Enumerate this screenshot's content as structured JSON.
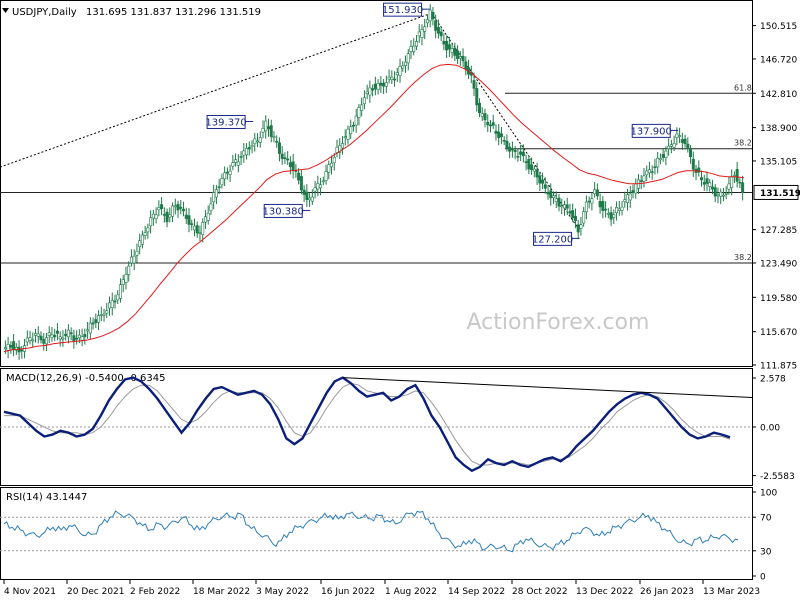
{
  "header": {
    "symbol": "USDJPY,Daily",
    "ohlc": "131.695 131.837 131.296 131.519",
    "macd_label": "MACD(12,26,9) -0.5400 -0.6345",
    "rsi_label": "RSI(14) 43.1447"
  },
  "watermark": "ActionForex.com",
  "colors": {
    "candles": "#1f7a4a",
    "ma": "#e11b1b",
    "macd": "#0b1f7a",
    "signal": "#9a9a9a",
    "rsi": "#2f7fb8",
    "frame": "#000000"
  },
  "chart_data": [
    {
      "type": "line",
      "panel": "price",
      "ylim": [
        111.875,
        153.2
      ],
      "y_ticks": [
        "150.515",
        "146.720",
        "142.810",
        "138.900",
        "135.105",
        "131.519",
        "127.285",
        "123.490",
        "119.580",
        "115.670",
        "111.875"
      ],
      "x_ticks": [
        "4 Nov 2021",
        "20 Dec 2021",
        "2 Feb 2022",
        "18 Mar 2022",
        "3 May 2022",
        "16 Jun 2022",
        "1 Aug 2022",
        "14 Sep 2022",
        "28 Oct 2022",
        "13 Dec 2022",
        "26 Jan 2023",
        "13 Mar 2023"
      ],
      "series": [
        {
          "values": [
            113.5,
            114.2,
            113.3,
            114.6,
            115.3,
            114.6,
            115.6,
            115.0,
            115.5,
            114.7,
            115.4,
            116.8,
            117.5,
            118.6,
            119.8,
            122.5,
            124.5,
            126.5,
            128.3,
            129.8,
            128.5,
            130.2,
            129.2,
            127.6,
            127.0,
            129.5,
            132.0,
            133.5,
            134.6,
            135.6,
            136.8,
            137.5,
            139.37,
            137.6,
            135.5,
            134.8,
            133.0,
            130.38,
            131.8,
            133.0,
            135.2,
            136.9,
            138.4,
            140.0,
            142.5,
            143.5,
            143.7,
            144.3,
            145.0,
            146.6,
            148.5,
            150.0,
            151.93,
            149.5,
            148.0,
            147.4,
            146.4,
            144.5,
            140.5,
            139.5,
            138.5,
            137.2,
            136.0,
            135.8,
            134.5,
            133.5,
            131.8,
            130.8,
            130.0,
            129.5,
            127.2,
            130.2,
            131.5,
            129.5,
            128.8,
            129.8,
            131.0,
            132.2,
            133.5,
            134.2,
            135.5,
            136.5,
            137.9,
            137.2,
            134.5,
            133.0,
            132.3,
            131.0,
            131.6,
            133.8,
            131.519
          ]
        },
        {
          "name": "",
          "values": [
            113.4,
            113.6,
            113.7,
            113.8,
            114.0,
            114.1,
            114.3,
            114.4,
            114.5,
            114.6,
            114.7,
            114.9,
            115.2,
            115.6,
            116.1,
            116.8,
            117.7,
            118.8,
            119.9,
            121.1,
            122.2,
            123.4,
            124.4,
            125.3,
            126.0,
            126.8,
            127.6,
            128.4,
            129.3,
            130.2,
            131.1,
            132.0,
            133.0,
            133.6,
            133.9,
            134.0,
            134.1,
            134.2,
            134.6,
            135.1,
            135.7,
            136.3,
            136.9,
            137.7,
            138.5,
            139.4,
            140.3,
            141.2,
            142.2,
            143.2,
            144.1,
            144.9,
            145.6,
            146.0,
            146.1,
            146.0,
            145.6,
            145.0,
            144.2,
            143.3,
            142.3,
            141.3,
            140.3,
            139.4,
            138.6,
            137.8,
            137.0,
            136.2,
            135.5,
            134.8,
            134.1,
            133.7,
            133.5,
            133.2,
            132.9,
            132.7,
            132.5,
            132.5,
            132.6,
            132.8,
            133.0,
            133.4,
            133.8,
            134.0,
            134.0,
            133.9,
            133.7,
            133.4,
            133.3,
            133.3,
            133.2
          ]
        }
      ],
      "horizontal_lines": [
        {
          "value": 142.81,
          "label": "61.8"
        },
        {
          "value": 136.5,
          "label": "38.2"
        },
        {
          "value": 131.519,
          "label": ""
        },
        {
          "value": 123.49,
          "label": "38.2"
        }
      ],
      "annotations": [
        {
          "text": "151.930",
          "value": 151.93
        },
        {
          "text": "139.370",
          "value": 139.37
        },
        {
          "text": "130.380",
          "value": 130.38
        },
        {
          "text": "137.900",
          "value": 137.9
        },
        {
          "text": "127.200",
          "value": 127.2
        }
      ],
      "current_value": "131.519"
    },
    {
      "type": "line",
      "panel": "macd",
      "ylim": [
        -3.0,
        3.0
      ],
      "y_ticks": [
        "2.578",
        "0.00",
        "-2.5583"
      ],
      "series": [
        {
          "values": [
            0.8,
            0.7,
            0.6,
            0.2,
            -0.2,
            -0.5,
            -0.4,
            -0.2,
            -0.3,
            -0.5,
            -0.4,
            -0.1,
            0.6,
            1.4,
            2.0,
            2.5,
            2.6,
            2.4,
            2.0,
            1.5,
            0.9,
            0.3,
            -0.3,
            0.2,
            0.9,
            1.5,
            2.0,
            2.1,
            1.9,
            1.7,
            1.8,
            1.9,
            1.7,
            1.2,
            0.4,
            -0.6,
            -0.9,
            -0.6,
            0.2,
            1.0,
            1.8,
            2.4,
            2.6,
            2.3,
            1.9,
            1.6,
            1.7,
            1.8,
            1.4,
            1.6,
            2.0,
            2.2,
            1.5,
            0.6,
            0.0,
            -0.8,
            -1.6,
            -2.0,
            -2.3,
            -2.1,
            -1.7,
            -1.9,
            -2.0,
            -1.8,
            -2.0,
            -2.1,
            -1.9,
            -1.7,
            -1.6,
            -1.8,
            -1.5,
            -1.0,
            -0.6,
            -0.2,
            0.3,
            0.8,
            1.2,
            1.5,
            1.7,
            1.8,
            1.7,
            1.5,
            1.0,
            0.5,
            0.0,
            -0.4,
            -0.6,
            -0.5,
            -0.3,
            -0.4,
            -0.54
          ]
        },
        {
          "name": "",
          "values": [
            0.6,
            0.6,
            0.6,
            0.4,
            0.2,
            0.0,
            -0.2,
            -0.3,
            -0.3,
            -0.3,
            -0.4,
            -0.3,
            0.0,
            0.5,
            1.1,
            1.6,
            2.0,
            2.2,
            2.2,
            1.9,
            1.4,
            0.9,
            0.4,
            0.2,
            0.4,
            0.8,
            1.3,
            1.7,
            1.9,
            1.8,
            1.8,
            1.8,
            1.8,
            1.5,
            1.0,
            0.3,
            -0.3,
            -0.5,
            -0.3,
            0.3,
            1.0,
            1.6,
            2.1,
            2.3,
            2.2,
            1.9,
            1.8,
            1.7,
            1.6,
            1.6,
            1.7,
            1.9,
            1.8,
            1.3,
            0.7,
            0.0,
            -0.7,
            -1.3,
            -1.8,
            -2.0,
            -2.0,
            -1.9,
            -1.9,
            -1.9,
            -1.9,
            -2.0,
            -1.9,
            -1.8,
            -1.7,
            -1.7,
            -1.6,
            -1.3,
            -1.0,
            -0.6,
            -0.1,
            0.3,
            0.8,
            1.1,
            1.4,
            1.6,
            1.7,
            1.6,
            1.3,
            0.9,
            0.4,
            0.0,
            -0.3,
            -0.5,
            -0.5,
            -0.5,
            -0.6345
          ]
        }
      ]
    },
    {
      "type": "line",
      "panel": "rsi",
      "ylim": [
        0,
        100
      ],
      "y_ticks": [
        "100",
        "70",
        "30",
        "0"
      ],
      "series": [
        {
          "values": [
            62,
            58,
            55,
            50,
            48,
            52,
            58,
            55,
            60,
            56,
            48,
            50,
            62,
            70,
            75,
            72,
            68,
            60,
            55,
            62,
            58,
            65,
            70,
            60,
            55,
            62,
            68,
            72,
            70,
            74,
            60,
            52,
            48,
            38,
            42,
            52,
            58,
            62,
            66,
            70,
            72,
            68,
            74,
            72,
            70,
            68,
            72,
            66,
            62,
            70,
            75,
            76,
            68,
            55,
            45,
            38,
            35,
            42,
            40,
            32,
            36,
            34,
            30,
            38,
            44,
            40,
            36,
            34,
            38,
            42,
            50,
            56,
            54,
            48,
            52,
            58,
            62,
            66,
            70,
            72,
            64,
            56,
            48,
            40,
            38,
            44,
            42,
            46,
            48,
            44,
            43.1447
          ]
        }
      ]
    }
  ]
}
